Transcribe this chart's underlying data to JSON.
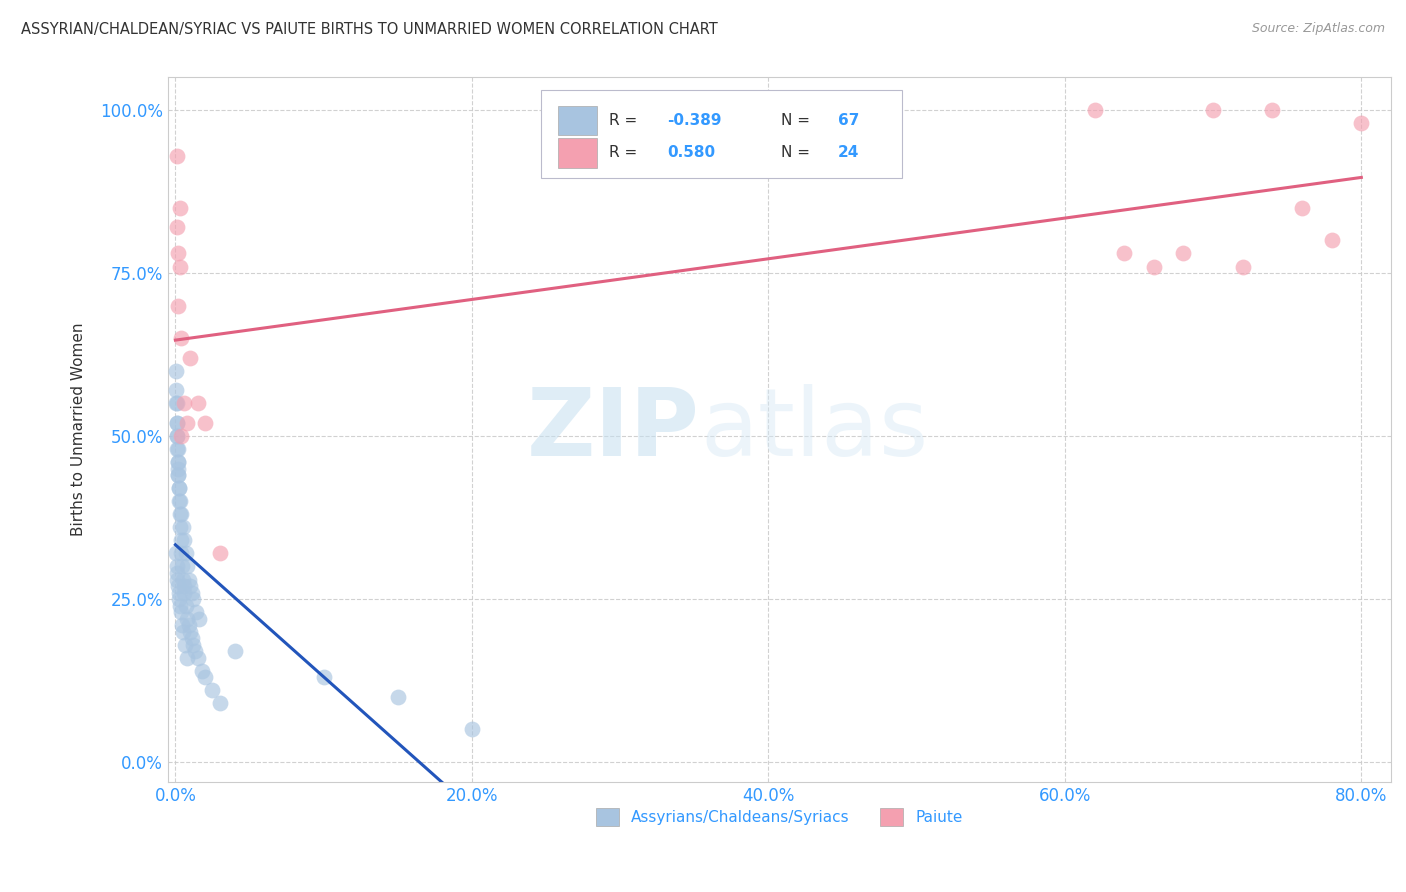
{
  "title": "ASSYRIAN/CHALDEAN/SYRIAC VS PAIUTE BIRTHS TO UNMARRIED WOMEN CORRELATION CHART",
  "source": "Source: ZipAtlas.com",
  "ylabel": "Births to Unmarried Women",
  "legend_label1": "Assyrians/Chaldeans/Syriacs",
  "legend_label2": "Paiute",
  "R1": -0.389,
  "N1": 67,
  "R2": 0.58,
  "N2": 24,
  "color1": "#a8c4e0",
  "color2": "#f4a0b0",
  "line_color1": "#2255bb",
  "line_color2": "#e06080",
  "blue_x": [
    0.05,
    0.08,
    0.1,
    0.12,
    0.15,
    0.18,
    0.2,
    0.25,
    0.3,
    0.4,
    0.5,
    0.6,
    0.7,
    0.8,
    0.9,
    1.0,
    1.1,
    1.2,
    1.4,
    1.6,
    0.05,
    0.07,
    0.09,
    0.11,
    0.13,
    0.15,
    0.17,
    0.19,
    0.22,
    0.25,
    0.28,
    0.32,
    0.36,
    0.4,
    0.45,
    0.5,
    0.55,
    0.6,
    0.7,
    0.8,
    0.9,
    1.0,
    1.1,
    1.2,
    1.3,
    1.5,
    1.8,
    2.0,
    2.5,
    3.0,
    0.05,
    0.08,
    0.11,
    0.14,
    0.18,
    0.22,
    0.26,
    0.3,
    0.35,
    0.42,
    0.5,
    0.65,
    0.8,
    4.0,
    10.0,
    15.0,
    20.0
  ],
  "blue_y": [
    55.0,
    52.0,
    50.0,
    48.0,
    46.0,
    45.0,
    44.0,
    42.0,
    40.0,
    38.0,
    36.0,
    34.0,
    32.0,
    30.0,
    28.0,
    27.0,
    26.0,
    25.0,
    23.0,
    22.0,
    60.0,
    57.0,
    55.0,
    52.0,
    50.0,
    48.0,
    46.0,
    44.0,
    42.0,
    40.0,
    38.0,
    36.0,
    34.0,
    32.0,
    30.0,
    28.0,
    27.0,
    26.0,
    24.0,
    22.0,
    21.0,
    20.0,
    19.0,
    18.0,
    17.0,
    16.0,
    14.0,
    13.0,
    11.0,
    9.0,
    32.0,
    30.0,
    29.0,
    28.0,
    27.0,
    26.0,
    25.0,
    24.0,
    23.0,
    21.0,
    20.0,
    18.0,
    16.0,
    17.0,
    13.0,
    10.0,
    5.0
  ],
  "pink_x": [
    0.1,
    0.2,
    0.3,
    0.4,
    0.6,
    0.8,
    1.0,
    1.5,
    2.0,
    3.0,
    0.1,
    0.3,
    0.2,
    0.4,
    62.0,
    64.0,
    66.0,
    68.0,
    70.0,
    72.0,
    74.0,
    76.0,
    78.0,
    80.0
  ],
  "pink_y": [
    82.0,
    70.0,
    76.0,
    65.0,
    55.0,
    52.0,
    62.0,
    55.0,
    52.0,
    32.0,
    93.0,
    85.0,
    78.0,
    50.0,
    100.0,
    78.0,
    76.0,
    78.0,
    100.0,
    76.0,
    100.0,
    85.0,
    80.0,
    98.0
  ],
  "watermark_zip": "ZIP",
  "watermark_atlas": "atlas",
  "background_color": "#ffffff",
  "xlim": [
    -0.5,
    82.0
  ],
  "ylim": [
    -3.0,
    105.0
  ],
  "xtick_vals": [
    0,
    20,
    40,
    60,
    80
  ],
  "ytick_vals": [
    0,
    25,
    50,
    75,
    100
  ]
}
